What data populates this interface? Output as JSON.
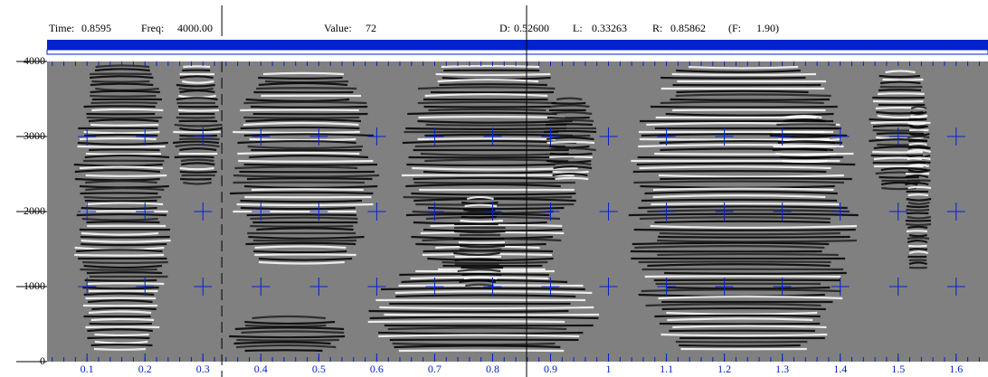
{
  "status_bar": {
    "items": [
      {
        "label": "Time:",
        "value": "0.8595"
      },
      {
        "label": "Freq:",
        "value": "4000.00"
      },
      {
        "label": "Value:",
        "value": "72"
      },
      {
        "label": "D:",
        "value": "0.52600"
      },
      {
        "label": "L:",
        "value": "0.33263"
      },
      {
        "label": "R:",
        "value": "0.85862"
      },
      {
        "label": "(F:",
        "value": "1.90)"
      }
    ]
  },
  "spectrogram": {
    "xlim": [
      0.031,
      1.655
    ],
    "ylim": [
      0,
      4000
    ],
    "xticks": [
      0.1,
      0.2,
      0.3,
      0.4,
      0.5,
      0.6,
      0.7,
      0.8,
      0.9,
      1,
      1.1,
      1.2,
      1.3,
      1.4,
      1.5,
      1.6
    ],
    "yticks": [
      0,
      1000,
      2000,
      3000,
      4000
    ]
  }
}
